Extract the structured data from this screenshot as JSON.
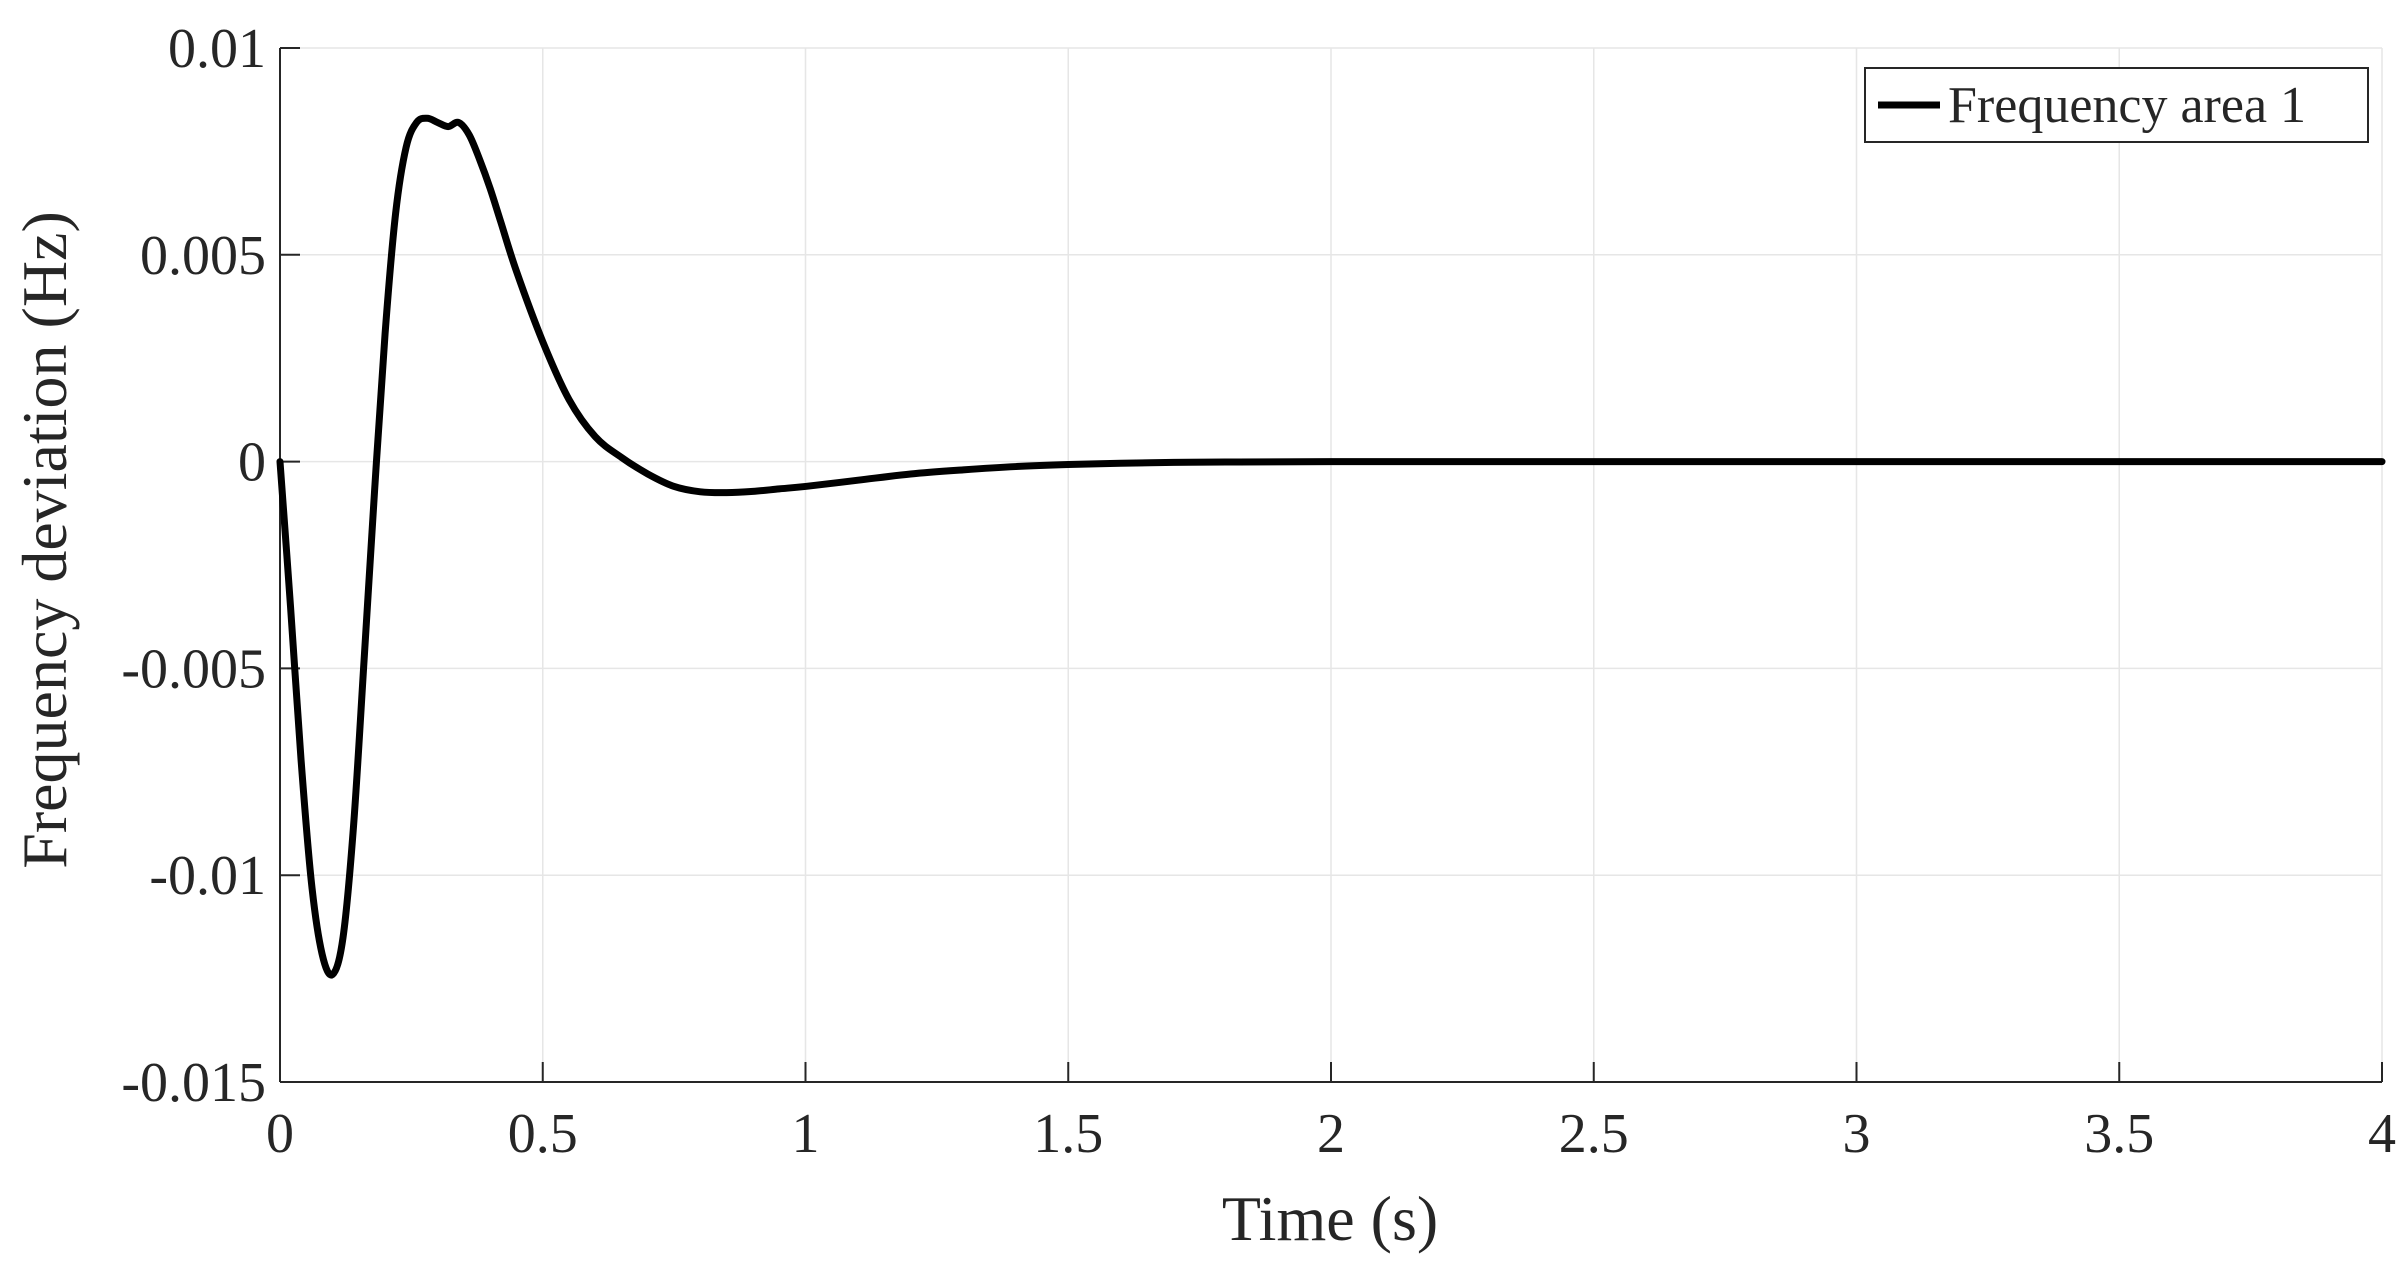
{
  "chart_data": {
    "type": "line",
    "title": "",
    "xlabel": "Time (s)",
    "ylabel": "Frequency deviation (Hz)",
    "xlim": [
      0,
      4
    ],
    "ylim": [
      -0.015,
      0.01
    ],
    "x_ticks": [
      0,
      0.5,
      1,
      1.5,
      2,
      2.5,
      3,
      3.5,
      4
    ],
    "x_tick_labels": [
      "0",
      "0.5",
      "1",
      "1.5",
      "2",
      "2.5",
      "3",
      "3.5",
      "4"
    ],
    "y_ticks": [
      -0.015,
      -0.01,
      -0.005,
      0,
      0.005,
      0.01
    ],
    "y_tick_labels": [
      "-0.015",
      "-0.01",
      "-0.005",
      "0",
      "0.005",
      "0.01"
    ],
    "grid": true,
    "legend_position": "top-right",
    "series": [
      {
        "name": "Frequency area 1",
        "color": "#000000",
        "x": [
          0,
          0.02,
          0.04,
          0.06,
          0.08,
          0.1,
          0.12,
          0.14,
          0.16,
          0.18,
          0.2,
          0.22,
          0.24,
          0.26,
          0.28,
          0.3,
          0.32,
          0.34,
          0.36,
          0.38,
          0.4,
          0.42,
          0.45,
          0.5,
          0.55,
          0.6,
          0.65,
          0.7,
          0.75,
          0.8,
          0.85,
          0.9,
          0.95,
          1.0,
          1.1,
          1.2,
          1.3,
          1.4,
          1.5,
          1.6,
          1.7,
          1.8,
          2.0,
          2.5,
          3.0,
          3.5,
          4.0
        ],
        "values": [
          0,
          -0.0035,
          -0.0072,
          -0.0102,
          -0.0119,
          -0.0124,
          -0.0115,
          -0.0088,
          -0.0048,
          -0.0007,
          0.0031,
          0.006,
          0.0076,
          0.0082,
          0.0083,
          0.0082,
          0.0081,
          0.0082,
          0.0079,
          0.0073,
          0.0066,
          0.0058,
          0.0046,
          0.0029,
          0.0015,
          0.0006,
          0.0001,
          -0.0003,
          -0.0006,
          -0.00073,
          -0.00075,
          -0.00072,
          -0.00066,
          -0.0006,
          -0.00045,
          -0.0003,
          -0.0002,
          -0.00012,
          -7e-05,
          -4e-05,
          -2e-05,
          -1e-05,
          0,
          0,
          0,
          0,
          0
        ]
      }
    ]
  }
}
